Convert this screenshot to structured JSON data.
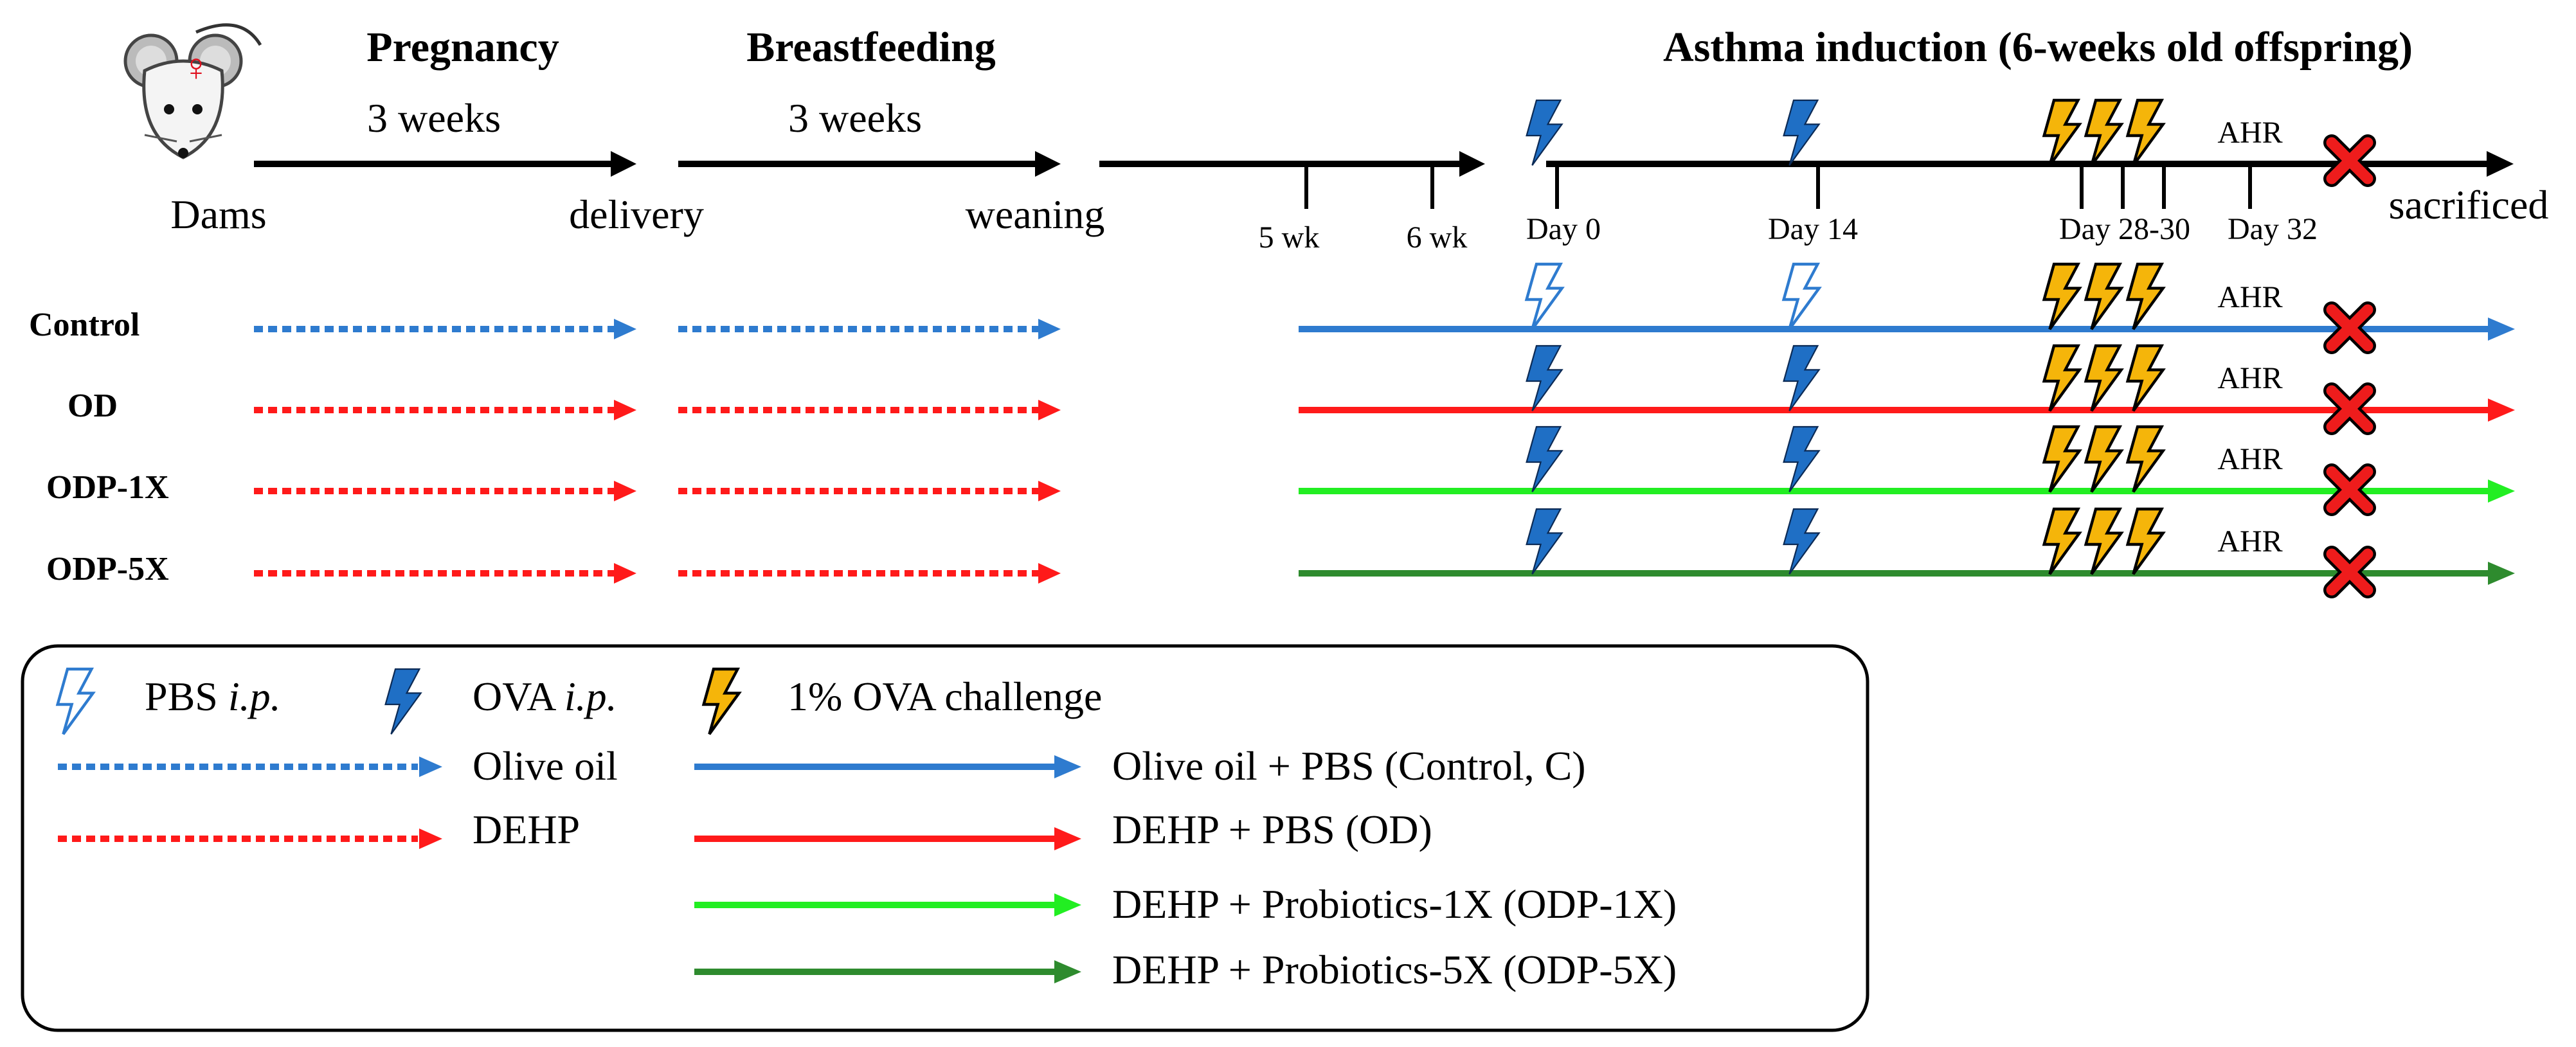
{
  "timeline": {
    "dams_label": "Dams",
    "delivery_label": "delivery",
    "weaning_label": "weaning",
    "sacrificed_label": "sacrificed",
    "pregnancy": {
      "title": "Pregnancy",
      "duration": "3 weeks"
    },
    "breastfeeding": {
      "title": "Breastfeeding",
      "duration": "3 weeks"
    },
    "asthma_title": "Asthma induction (6-weeks old offspring)",
    "ticks": {
      "wk5": "5 wk",
      "wk6": "6 wk",
      "day0": "Day 0",
      "day14": "Day 14",
      "day28_30": "Day 28-30",
      "day32": "Day 32"
    },
    "ahr_label": "AHR",
    "female_symbol": "♀"
  },
  "groups": [
    {
      "label": "Control",
      "color": "#2e7bcf",
      "prenatal": "olive-oil",
      "ip": "PBS"
    },
    {
      "label": "OD",
      "color": "#ff1a1a",
      "prenatal": "DEHP",
      "ip": "OVA"
    },
    {
      "label": "ODP-1X",
      "color": "#22ee22",
      "prenatal": "DEHP",
      "ip": "OVA"
    },
    {
      "label": "ODP-5X",
      "color": "#2e8b2e",
      "prenatal": "DEHP",
      "ip": "OVA"
    }
  ],
  "legend": {
    "pbs_ip": {
      "name": "PBS",
      "route": "i.p."
    },
    "ova_ip": {
      "name": "OVA",
      "route": "i.p."
    },
    "challenge": "1% OVA challenge",
    "olive_oil": "Olive oil",
    "dehp": "DEHP",
    "control": "Olive oil + PBS (Control, C)",
    "od": "DEHP + PBS (OD)",
    "odp1x": "DEHP + Probiotics-1X (ODP-1X)",
    "odp5x": "DEHP + Probiotics-5X (ODP-5X)"
  },
  "colors": {
    "blue": "#2e7bcf",
    "red": "#ff1a1a",
    "lime": "#22ee22",
    "darkgreen": "#2e8b2e",
    "ova_bolt": "#1f6fc5",
    "challenge_bolt": "#f5b50a",
    "sacrifice_x": "#ee1c1c"
  }
}
